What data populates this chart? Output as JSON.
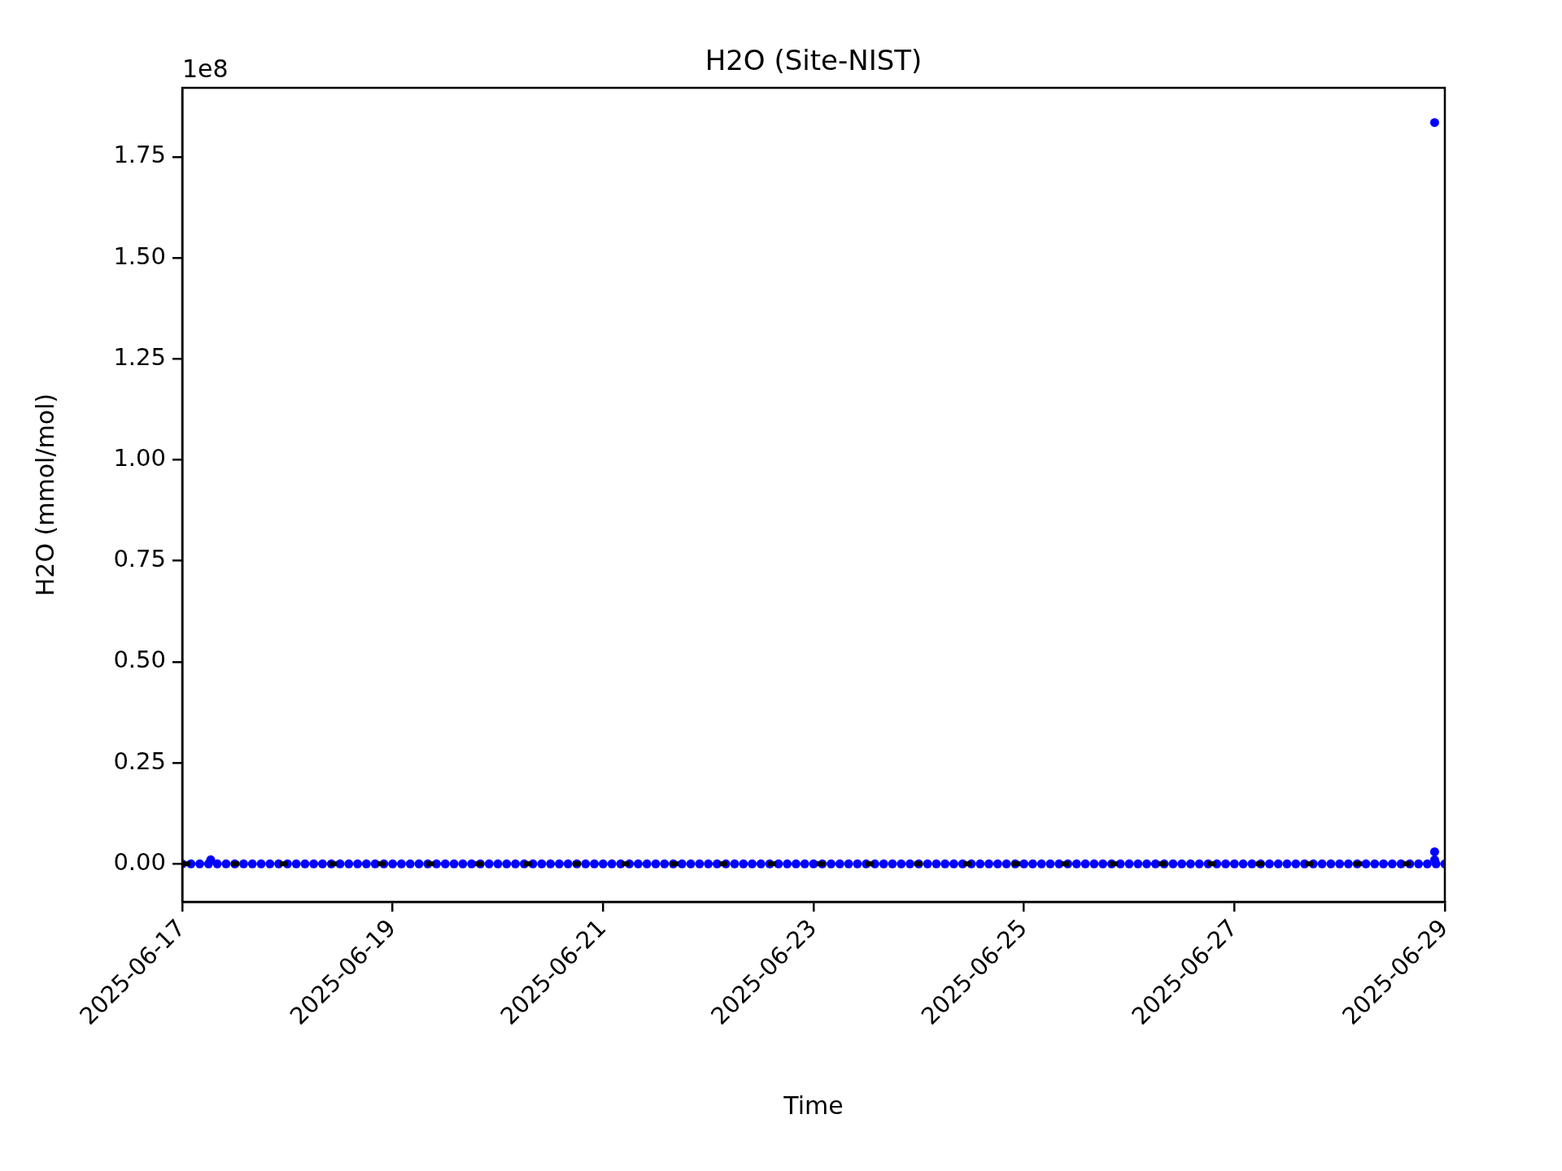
{
  "chart_data": {
    "type": "scatter",
    "title": "H2O (Site-NIST)",
    "xlabel": "Time",
    "ylabel": "H2O (mmol/mol)",
    "annotations": [
      "1e8"
    ],
    "xlim": [
      "2025-06-17",
      "2025-06-29"
    ],
    "xticks": [
      "2025-06-17",
      "2025-06-19",
      "2025-06-21",
      "2025-06-23",
      "2025-06-25",
      "2025-06-27",
      "2025-06-29"
    ],
    "ylim": [
      -0.094,
      1.921
    ],
    "yticks": [
      {
        "value": 0,
        "label": "0.00"
      },
      {
        "value": 0.25,
        "label": "0.25"
      },
      {
        "value": 0.5,
        "label": "0.50"
      },
      {
        "value": 0.75,
        "label": "0.75"
      },
      {
        "value": 1,
        "label": "1.00"
      },
      {
        "value": 1.25,
        "label": "1.25"
      },
      {
        "value": 1.5,
        "label": "1.50"
      },
      {
        "value": 1.75,
        "label": "1.75"
      }
    ],
    "grid": false,
    "legend": false,
    "marker": "circle",
    "ref_lines": [
      {
        "axis": "y",
        "value": 0,
        "color": "#000000",
        "line_style": "dashed"
      }
    ],
    "series": [
      {
        "color": "#0000ff",
        "x": [
          "2025-06-17T00:00",
          "2025-06-17T02:00",
          "2025-06-17T04:00",
          "2025-06-17T06:00",
          "2025-06-17T06:30",
          "2025-06-17T08:00",
          "2025-06-17T10:00",
          "2025-06-17T12:00",
          "2025-06-17T14:00",
          "2025-06-17T16:00",
          "2025-06-17T18:00",
          "2025-06-17T20:00",
          "2025-06-17T22:00",
          "2025-06-18T00:00",
          "2025-06-18T02:00",
          "2025-06-18T04:00",
          "2025-06-18T06:00",
          "2025-06-18T08:00",
          "2025-06-18T10:00",
          "2025-06-18T12:00",
          "2025-06-18T14:00",
          "2025-06-18T16:00",
          "2025-06-18T18:00",
          "2025-06-18T20:00",
          "2025-06-18T22:00",
          "2025-06-19T00:00",
          "2025-06-19T02:00",
          "2025-06-19T04:00",
          "2025-06-19T06:00",
          "2025-06-19T08:00",
          "2025-06-19T10:00",
          "2025-06-19T12:00",
          "2025-06-19T14:00",
          "2025-06-19T16:00",
          "2025-06-19T18:00",
          "2025-06-19T20:00",
          "2025-06-19T22:00",
          "2025-06-20T00:00",
          "2025-06-20T02:00",
          "2025-06-20T04:00",
          "2025-06-20T06:00",
          "2025-06-20T08:00",
          "2025-06-20T10:00",
          "2025-06-20T12:00",
          "2025-06-20T14:00",
          "2025-06-20T16:00",
          "2025-06-20T18:00",
          "2025-06-20T20:00",
          "2025-06-20T22:00",
          "2025-06-21T00:00",
          "2025-06-21T02:00",
          "2025-06-21T04:00",
          "2025-06-21T06:00",
          "2025-06-21T08:00",
          "2025-06-21T10:00",
          "2025-06-21T12:00",
          "2025-06-21T14:00",
          "2025-06-21T16:00",
          "2025-06-21T18:00",
          "2025-06-21T20:00",
          "2025-06-21T22:00",
          "2025-06-22T00:00",
          "2025-06-22T02:00",
          "2025-06-22T04:00",
          "2025-06-22T06:00",
          "2025-06-22T08:00",
          "2025-06-22T10:00",
          "2025-06-22T12:00",
          "2025-06-22T14:00",
          "2025-06-22T16:00",
          "2025-06-22T18:00",
          "2025-06-22T20:00",
          "2025-06-22T22:00",
          "2025-06-23T00:00",
          "2025-06-23T02:00",
          "2025-06-23T04:00",
          "2025-06-23T06:00",
          "2025-06-23T08:00",
          "2025-06-23T10:00",
          "2025-06-23T12:00",
          "2025-06-23T14:00",
          "2025-06-23T16:00",
          "2025-06-23T18:00",
          "2025-06-23T20:00",
          "2025-06-23T22:00",
          "2025-06-24T00:00",
          "2025-06-24T02:00",
          "2025-06-24T04:00",
          "2025-06-24T06:00",
          "2025-06-24T08:00",
          "2025-06-24T10:00",
          "2025-06-24T12:00",
          "2025-06-24T14:00",
          "2025-06-24T16:00",
          "2025-06-24T18:00",
          "2025-06-24T20:00",
          "2025-06-24T22:00",
          "2025-06-25T00:00",
          "2025-06-25T02:00",
          "2025-06-25T04:00",
          "2025-06-25T06:00",
          "2025-06-25T08:00",
          "2025-06-25T10:00",
          "2025-06-25T12:00",
          "2025-06-25T14:00",
          "2025-06-25T16:00",
          "2025-06-25T18:00",
          "2025-06-25T20:00",
          "2025-06-25T22:00",
          "2025-06-26T00:00",
          "2025-06-26T02:00",
          "2025-06-26T04:00",
          "2025-06-26T06:00",
          "2025-06-26T08:00",
          "2025-06-26T10:00",
          "2025-06-26T12:00",
          "2025-06-26T14:00",
          "2025-06-26T16:00",
          "2025-06-26T18:00",
          "2025-06-26T20:00",
          "2025-06-26T22:00",
          "2025-06-27T00:00",
          "2025-06-27T02:00",
          "2025-06-27T04:00",
          "2025-06-27T06:00",
          "2025-06-27T08:00",
          "2025-06-27T10:00",
          "2025-06-27T12:00",
          "2025-06-27T14:00",
          "2025-06-27T16:00",
          "2025-06-27T18:00",
          "2025-06-27T20:00",
          "2025-06-27T22:00",
          "2025-06-28T00:00",
          "2025-06-28T02:00",
          "2025-06-28T04:00",
          "2025-06-28T06:00",
          "2025-06-28T08:00",
          "2025-06-28T10:00",
          "2025-06-28T12:00",
          "2025-06-28T14:00",
          "2025-06-28T16:00",
          "2025-06-28T18:00",
          "2025-06-28T20:00",
          "2025-06-28T21:40",
          "2025-06-28T21:40",
          "2025-06-28T21:40",
          "2025-06-28T22:00",
          "2025-06-29T00:00"
        ],
        "values": [
          0,
          0,
          0,
          0,
          0.01,
          0,
          0,
          0,
          0,
          0,
          0,
          0,
          0,
          0,
          0,
          0,
          0,
          0,
          0,
          0,
          0,
          0,
          0,
          0,
          0,
          0,
          0,
          0,
          0,
          0,
          0,
          0,
          0,
          0,
          0,
          0,
          0,
          0,
          0,
          0,
          0,
          0,
          0,
          0,
          0,
          0,
          0,
          0,
          0,
          0,
          0,
          0,
          0,
          0,
          0,
          0,
          0,
          0,
          0,
          0,
          0,
          0,
          0,
          0,
          0,
          0,
          0,
          0,
          0,
          0,
          0,
          0,
          0,
          0,
          0,
          0,
          0,
          0,
          0,
          0,
          0,
          0,
          0,
          0,
          0,
          0,
          0,
          0,
          0,
          0,
          0,
          0,
          0,
          0,
          0,
          0,
          0,
          0,
          0,
          0,
          0,
          0,
          0,
          0,
          0,
          0,
          0,
          0,
          0,
          0,
          0,
          0,
          0,
          0,
          0,
          0,
          0,
          0,
          0,
          0,
          0,
          0,
          0,
          0,
          0,
          0,
          0,
          0,
          0,
          0,
          0,
          0,
          0,
          0,
          0,
          0,
          0,
          0,
          0,
          0,
          0,
          0,
          0,
          0,
          1.835,
          0.03,
          0.01,
          0,
          0
        ]
      }
    ]
  }
}
